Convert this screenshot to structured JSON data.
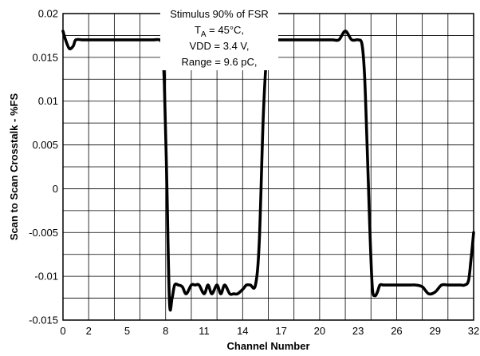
{
  "chart_data": {
    "type": "line",
    "title": "",
    "xlabel": "Channel Number",
    "ylabel": "Scan to Scan Crosstalk - %FS",
    "xlim": [
      0,
      32
    ],
    "ylim": [
      -0.015,
      0.02
    ],
    "x_ticks": [
      0,
      2,
      5,
      8,
      11,
      14,
      17,
      20,
      23,
      26,
      29,
      32
    ],
    "x_tick_labels": [
      "0",
      "2",
      "5",
      "8",
      "11",
      "14",
      "17",
      "20",
      "23",
      "26",
      "29",
      "32"
    ],
    "y_ticks": [
      -0.015,
      -0.01,
      -0.005,
      0,
      0.005,
      0.01,
      0.015,
      0.02
    ],
    "y_tick_labels": [
      "-0.015",
      "-0.01",
      "-0.005",
      "0",
      "0.005",
      "0.01",
      "0.015",
      "0.02"
    ],
    "x_grid": [
      0,
      2,
      4,
      6,
      8,
      10,
      12,
      14,
      16,
      18,
      20,
      22,
      24,
      26,
      28,
      30,
      32
    ],
    "y_grid": [
      -0.015,
      -0.0125,
      -0.01,
      -0.0075,
      -0.005,
      -0.0025,
      0,
      0.0025,
      0.005,
      0.0075,
      0.01,
      0.0125,
      0.015,
      0.0175,
      0.02
    ],
    "grid": true,
    "annotation": {
      "line1": "Stimulus 90% of FSR",
      "line2_prefix": "T",
      "line2_sub": "A",
      "line2_suffix": " = 45°C,",
      "line3": "VDD = 3.4 V,",
      "line4": "Range = 9.6 pC,"
    },
    "series": [
      {
        "color": "#000000",
        "x": [
          0,
          0.2,
          0.5,
          0.8,
          1.0,
          1.5,
          2,
          3,
          4,
          5,
          6,
          7,
          7.5,
          7.7,
          7.9,
          8.1,
          8.3,
          8.5,
          8.7,
          9.0,
          9.3,
          9.6,
          10.0,
          10.3,
          10.6,
          11.0,
          11.3,
          11.6,
          12.0,
          12.3,
          12.6,
          13.0,
          13.3,
          13.6,
          14.0,
          14.3,
          14.6,
          15.0,
          15.3,
          15.6,
          15.9,
          16.1,
          16.3,
          16.5,
          16.7,
          17.0,
          17.5,
          18,
          19,
          20,
          21,
          21.5,
          22.0,
          22.5,
          23.0,
          23.3,
          23.5,
          23.7,
          23.9,
          24.1,
          24.3,
          24.5,
          24.7,
          25.0,
          25.5,
          26,
          27,
          27.5,
          28,
          28.5,
          29,
          29.5,
          30,
          30.5,
          31,
          31.3,
          31.6,
          31.8,
          32
        ],
        "y": [
          0.018,
          0.017,
          0.016,
          0.0163,
          0.017,
          0.017,
          0.017,
          0.017,
          0.017,
          0.017,
          0.017,
          0.017,
          0.017,
          0.0165,
          0.012,
          0.0,
          -0.013,
          -0.0125,
          -0.011,
          -0.011,
          -0.0112,
          -0.012,
          -0.011,
          -0.011,
          -0.011,
          -0.012,
          -0.011,
          -0.012,
          -0.011,
          -0.012,
          -0.011,
          -0.012,
          -0.012,
          -0.012,
          -0.0115,
          -0.011,
          -0.011,
          -0.011,
          -0.006,
          0.008,
          0.016,
          0.018,
          0.0172,
          0.017,
          0.017,
          0.017,
          0.017,
          0.017,
          0.017,
          0.017,
          0.017,
          0.017,
          0.018,
          0.017,
          0.017,
          0.0165,
          0.013,
          0.005,
          -0.004,
          -0.0112,
          -0.0122,
          -0.0118,
          -0.011,
          -0.011,
          -0.011,
          -0.011,
          -0.011,
          -0.011,
          -0.0112,
          -0.012,
          -0.0118,
          -0.011,
          -0.011,
          -0.011,
          -0.011,
          -0.011,
          -0.0105,
          -0.008,
          -0.005
        ]
      }
    ]
  }
}
